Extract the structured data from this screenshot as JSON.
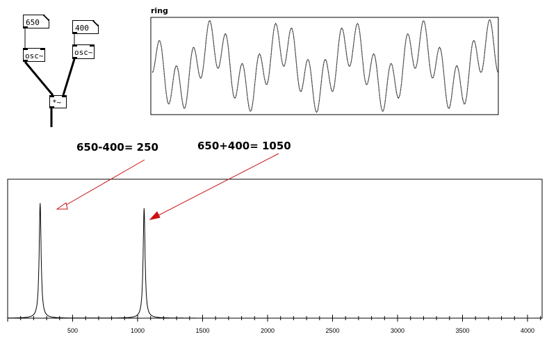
{
  "patch": {
    "msg_650": "650",
    "msg_400": "400",
    "osc_left": "osc~",
    "osc_right": "osc~",
    "multiply": "*~"
  },
  "scope": {
    "label": "ring"
  },
  "annotations": {
    "difference": "650-400= 250",
    "sum": "650+400= 1050"
  },
  "colors": {
    "arrow": "#cc1111",
    "line": "#000000"
  },
  "chart_data": {
    "type": "line",
    "title": "",
    "xlabel": "",
    "ylabel": "",
    "xlim": [
      0,
      4200
    ],
    "ylim": [
      0,
      1
    ],
    "tick_labels": [
      "500",
      "1000",
      "1500",
      "2000",
      "2500",
      "3000",
      "3500",
      "4000"
    ],
    "peaks": [
      {
        "frequency": 250,
        "amplitude": 0.92
      },
      {
        "frequency": 1050,
        "amplitude": 0.88
      }
    ],
    "legend": "none",
    "grid": false
  }
}
